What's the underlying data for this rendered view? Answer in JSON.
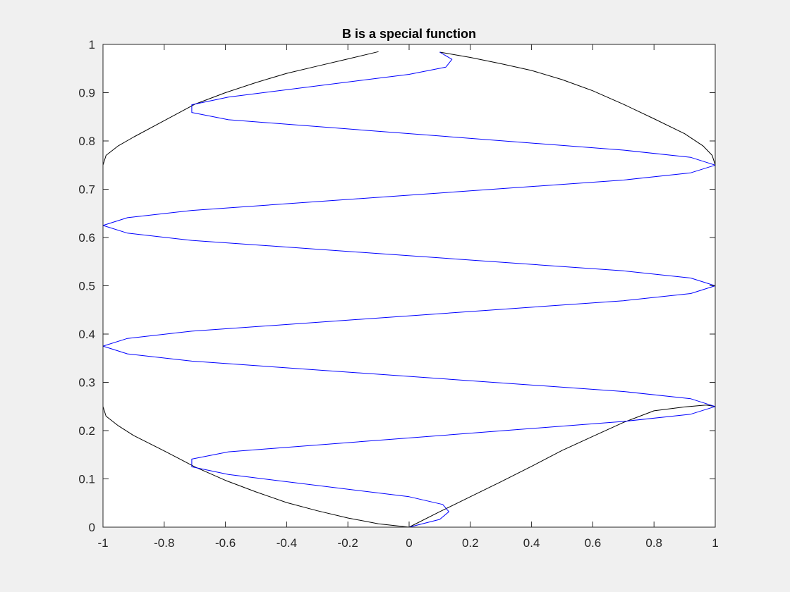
{
  "chart_data": {
    "type": "line",
    "title": "B is a special function",
    "xlabel": "",
    "ylabel": "",
    "xlim": [
      -1,
      1
    ],
    "ylim": [
      0,
      1
    ],
    "xticks": [
      -1,
      -0.8,
      -0.6,
      -0.4,
      -0.2,
      0,
      0.2,
      0.4,
      0.6,
      0.8,
      1
    ],
    "xtick_labels": [
      "-1",
      "-0.8",
      "-0.6",
      "-0.4",
      "-0.2",
      "0",
      "0.2",
      "0.4",
      "0.6",
      "0.8",
      "1"
    ],
    "yticks": [
      0,
      0.1,
      0.2,
      0.3,
      0.4,
      0.5,
      0.6,
      0.7,
      0.8,
      0.9,
      1
    ],
    "ytick_labels": [
      "0",
      "0.1",
      "0.2",
      "0.3",
      "0.4",
      "0.5",
      "0.6",
      "0.7",
      "0.8",
      "0.9",
      "1"
    ],
    "grid": false,
    "series": [
      {
        "color": "#000000",
        "points": [
          [
            0,
            0
          ],
          [
            0.1,
            0.032
          ],
          [
            0.2,
            0.063
          ],
          [
            0.3,
            0.094
          ],
          [
            0.4,
            0.126
          ],
          [
            0.5,
            0.159
          ],
          [
            0.6,
            0.188
          ],
          [
            0.7,
            0.217
          ],
          [
            0.8,
            0.241
          ],
          [
            0.9,
            0.249
          ],
          [
            0.97,
            0.253
          ],
          [
            1,
            0.25
          ],
          [
            1,
            0.75
          ],
          [
            0.99,
            0.77
          ],
          [
            0.96,
            0.79
          ],
          [
            0.9,
            0.815
          ],
          [
            0.8,
            0.846
          ],
          [
            0.7,
            0.876
          ],
          [
            0.6,
            0.904
          ],
          [
            0.5,
            0.927
          ],
          [
            0.4,
            0.946
          ],
          [
            0.3,
            0.96
          ],
          [
            0.2,
            0.973
          ],
          [
            0.1,
            0.984
          ]
        ]
      },
      {
        "color": "#000000",
        "points": [
          [
            -1,
            0.25
          ],
          [
            -0.99,
            0.23
          ],
          [
            -0.95,
            0.21
          ],
          [
            -0.9,
            0.19
          ],
          [
            -0.8,
            0.158
          ],
          [
            -0.7,
            0.125
          ],
          [
            -0.6,
            0.097
          ],
          [
            -0.5,
            0.073
          ],
          [
            -0.4,
            0.051
          ],
          [
            -0.3,
            0.034
          ],
          [
            -0.2,
            0.019
          ],
          [
            -0.1,
            0.007
          ],
          [
            0,
            0
          ]
        ]
      },
      {
        "color": "#000000",
        "points": [
          [
            -1,
            0.75
          ],
          [
            -0.99,
            0.77
          ],
          [
            -0.95,
            0.79
          ],
          [
            -0.9,
            0.808
          ],
          [
            -0.8,
            0.842
          ],
          [
            -0.7,
            0.876
          ],
          [
            -0.6,
            0.9
          ],
          [
            -0.5,
            0.921
          ],
          [
            -0.4,
            0.94
          ],
          [
            -0.3,
            0.955
          ],
          [
            -0.2,
            0.97
          ],
          [
            -0.1,
            0.985
          ]
        ]
      },
      {
        "color": "#0000ff",
        "points": [
          [
            0,
            0
          ],
          [
            0.1,
            0.016
          ],
          [
            0.13,
            0.032
          ],
          [
            0.11,
            0.047
          ],
          [
            0,
            0.063
          ],
          [
            -0.59,
            0.109
          ],
          [
            -0.71,
            0.125
          ],
          [
            -0.71,
            0.141
          ],
          [
            -0.59,
            0.156
          ],
          [
            0.7,
            0.219
          ],
          [
            0.92,
            0.234
          ],
          [
            1,
            0.25
          ],
          [
            0.92,
            0.266
          ],
          [
            0.7,
            0.281
          ],
          [
            -0.71,
            0.344
          ],
          [
            -0.92,
            0.359
          ],
          [
            -1,
            0.375
          ],
          [
            -0.92,
            0.391
          ],
          [
            -0.71,
            0.406
          ],
          [
            0.7,
            0.469
          ],
          [
            0.92,
            0.484
          ],
          [
            1,
            0.5
          ],
          [
            0.92,
            0.516
          ],
          [
            0.7,
            0.531
          ],
          [
            -0.71,
            0.594
          ],
          [
            -0.92,
            0.609
          ],
          [
            -1,
            0.625
          ],
          [
            -0.92,
            0.641
          ],
          [
            -0.71,
            0.656
          ],
          [
            0.7,
            0.719
          ],
          [
            0.92,
            0.734
          ],
          [
            1,
            0.75
          ],
          [
            0.92,
            0.766
          ],
          [
            0.7,
            0.781
          ],
          [
            -0.59,
            0.844
          ],
          [
            -0.71,
            0.859
          ],
          [
            -0.71,
            0.875
          ],
          [
            -0.59,
            0.891
          ],
          [
            0,
            0.938
          ],
          [
            0.12,
            0.953
          ],
          [
            0.14,
            0.969
          ],
          [
            0.1,
            0.984
          ]
        ]
      }
    ]
  }
}
